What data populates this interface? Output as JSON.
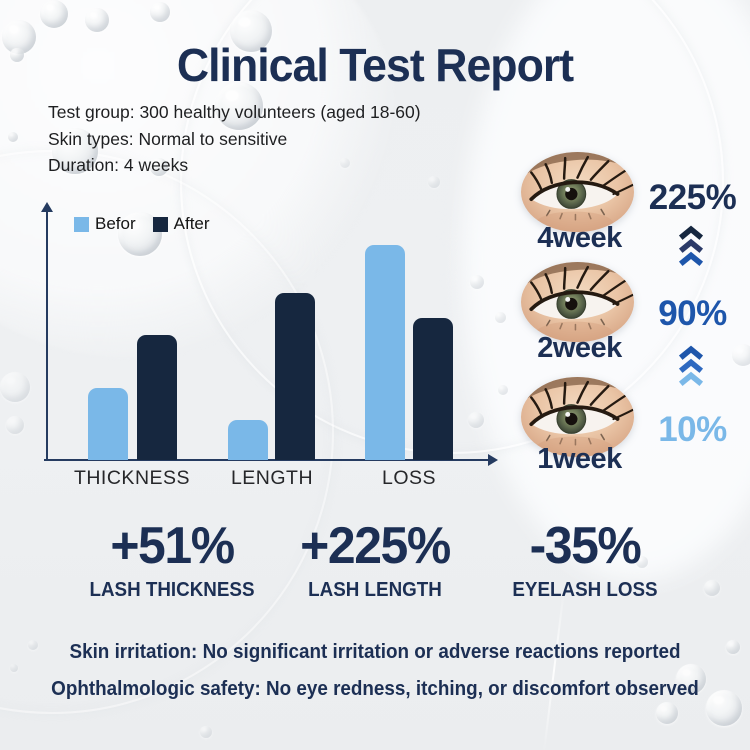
{
  "title": "Clinical Test Report",
  "test_info": {
    "group": "Test group: 300 healthy volunteers (aged 18-60)",
    "skin_types": "Skin types: Normal to sensitive",
    "duration": "Duration: 4 weeks"
  },
  "chart_data": {
    "type": "bar",
    "title": "",
    "categories": [
      "THICKNESS",
      "LENGTH",
      "LOSS"
    ],
    "series": [
      {
        "name": "Befor",
        "color": "#7ab8e8",
        "values": [
          29,
          16,
          86
        ]
      },
      {
        "name": "After",
        "color": "#16273f",
        "values": [
          50,
          67,
          57
        ]
      }
    ],
    "xlabel": "",
    "ylabel": "",
    "ylim": [
      0,
      100
    ],
    "grid": false,
    "legend_position": "top-left",
    "note": "axes are unlabeled arrows; values are relative bar heights (0-100 scale) estimated from pixels"
  },
  "timeline": {
    "items": [
      {
        "week": "4week",
        "percent": "225%",
        "percent_color": "#1c2f54"
      },
      {
        "week": "2week",
        "percent": "90%",
        "percent_color": "#1e56ab"
      },
      {
        "week": "1week",
        "percent": "10%",
        "percent_color": "#7ab8e8"
      }
    ],
    "arrows": [
      {
        "colors": [
          "#16273f",
          "#2b3a68",
          "#1e56ab"
        ]
      },
      {
        "colors": [
          "#1e56ab",
          "#2e69c0",
          "#7ab8e8"
        ]
      }
    ]
  },
  "stats": [
    {
      "value": "+51%",
      "label": "LASH THICKNESS"
    },
    {
      "value": "+225%",
      "label": "LASH LENGTH"
    },
    {
      "value": "-35%",
      "label": "EYELASH LOSS"
    }
  ],
  "safety": {
    "skin": "Skin irritation: No significant irritation or adverse reactions reported",
    "eye": "Ophthalmologic safety: No eye redness, itching, or discomfort observed"
  },
  "colors": {
    "navy": "#1c2f54",
    "dark_bar": "#16273f",
    "light_blue": "#7ab8e8",
    "medium_blue": "#1e56ab",
    "axis": "#253b60",
    "background": "#eef0f2"
  }
}
